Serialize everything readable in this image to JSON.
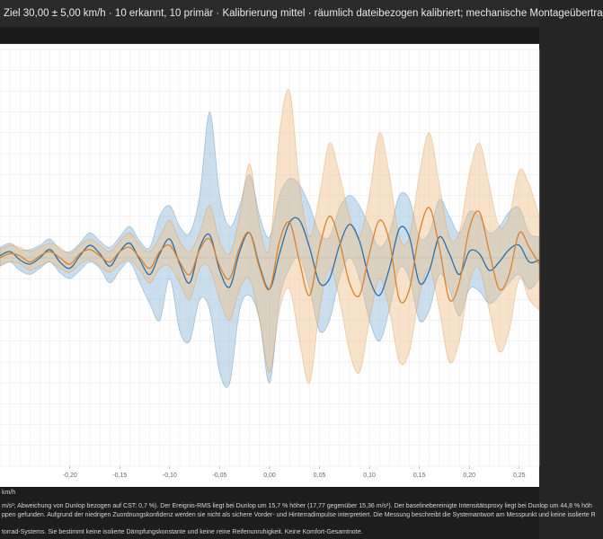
{
  "header": {
    "title": "Ziel 30,00 ± 5,00 km/h · 10 erkannt, 10 primär · Kalibrierung mittel · räumlich dateibezogen kalibriert; mechanische Montageübertra"
  },
  "footer": {
    "line1": "km/h",
    "line2": "m/s²; Abweichung von Dunlop bezogen auf CST: 0,7 %). Der Ereignis-RMS liegt bei Dunlop um 15,7 % höher (17,77 gegenüber 15,36 m/s²). Der baselinebereinigte Intensitätsproxy liegt bei Dunlop um 44,8 % höh",
    "line3": "ppen gefunden. Aufgrund der niedrigen Zuordnungskonfidenz werden sie nicht als sichere Vorder- und Hinterradimpulse interpretiert. Die Messung beschreibt die Systemantwort am Messpunkt und keine isolierte R",
    "line4": "torrad-Systems. Sie bestimmt keine isolierte Dämpfungskonstante und keine reine Reifenunruhigkeit. Keine Komfort-Gesamtnote."
  },
  "colors": {
    "background": "#ffffff",
    "grid": "#e8e8e8",
    "blue_line": "#2b6fa8",
    "blue_band": "#8bb6da",
    "orange_line": "#d9822b",
    "orange_band": "#f0c08a"
  },
  "chart_data": {
    "type": "line",
    "xlim": [
      -0.27,
      0.27
    ],
    "ylim": [
      -1.0,
      1.0
    ],
    "x_ticks": [
      {
        "value": -0.2,
        "label": "-0,20"
      },
      {
        "value": -0.15,
        "label": "-0,15"
      },
      {
        "value": -0.1,
        "label": "-0,10"
      },
      {
        "value": -0.05,
        "label": "-0,05"
      },
      {
        "value": 0.0,
        "label": "0,00"
      },
      {
        "value": 0.05,
        "label": "0,05"
      },
      {
        "value": 0.1,
        "label": "0,10"
      },
      {
        "value": 0.15,
        "label": "0,15"
      },
      {
        "value": 0.2,
        "label": "0,20"
      },
      {
        "value": 0.25,
        "label": "0,25"
      }
    ],
    "grid": true,
    "x": [
      -0.27,
      -0.26,
      -0.25,
      -0.24,
      -0.23,
      -0.22,
      -0.21,
      -0.2,
      -0.19,
      -0.18,
      -0.17,
      -0.16,
      -0.15,
      -0.14,
      -0.13,
      -0.12,
      -0.11,
      -0.1,
      -0.09,
      -0.08,
      -0.07,
      -0.06,
      -0.05,
      -0.04,
      -0.03,
      -0.02,
      -0.01,
      0.0,
      0.01,
      0.02,
      0.03,
      0.04,
      0.05,
      0.06,
      0.07,
      0.08,
      0.09,
      0.1,
      0.11,
      0.12,
      0.13,
      0.14,
      0.15,
      0.16,
      0.17,
      0.18,
      0.19,
      0.2,
      0.21,
      0.22,
      0.23,
      0.24,
      0.25,
      0.26,
      0.27
    ],
    "series": [
      {
        "color": "blue",
        "mean": [
          0.01,
          0.03,
          -0.01,
          -0.03,
          0.0,
          0.04,
          -0.02,
          -0.05,
          0.01,
          0.06,
          0.02,
          -0.04,
          0.03,
          0.07,
          -0.01,
          -0.08,
          0.02,
          0.09,
          -0.03,
          -0.12,
          0.05,
          0.11,
          -0.06,
          -0.14,
          0.03,
          0.12,
          -0.04,
          -0.15,
          0.02,
          0.17,
          0.18,
          0.05,
          -0.12,
          -0.1,
          0.06,
          0.16,
          0.08,
          -0.1,
          -0.18,
          -0.05,
          0.14,
          0.1,
          -0.12,
          -0.06,
          0.1,
          0.02,
          -0.08,
          0.03,
          0.02,
          -0.06,
          -0.02,
          0.04,
          0.06,
          -0.02,
          -0.01
        ],
        "upper": [
          0.05,
          0.07,
          0.04,
          0.04,
          0.06,
          0.09,
          0.04,
          0.03,
          0.07,
          0.12,
          0.08,
          0.05,
          0.1,
          0.15,
          0.08,
          0.05,
          0.2,
          0.25,
          0.15,
          0.12,
          0.3,
          0.7,
          0.3,
          0.15,
          0.25,
          0.4,
          0.2,
          0.1,
          0.3,
          0.38,
          0.35,
          0.25,
          0.12,
          0.1,
          0.24,
          0.3,
          0.25,
          0.15,
          0.05,
          0.12,
          0.3,
          0.28,
          0.1,
          0.12,
          0.28,
          0.2,
          0.12,
          0.22,
          0.2,
          0.12,
          0.15,
          0.22,
          0.24,
          0.12,
          0.1
        ],
        "lower": [
          -0.04,
          -0.02,
          -0.06,
          -0.08,
          -0.05,
          -0.02,
          -0.07,
          -0.1,
          -0.06,
          -0.02,
          -0.05,
          -0.12,
          -0.06,
          -0.02,
          -0.12,
          -0.22,
          -0.3,
          -0.1,
          -0.35,
          -0.4,
          -0.2,
          -0.25,
          -0.55,
          -0.6,
          -0.25,
          -0.18,
          -0.3,
          -0.6,
          -0.2,
          -0.05,
          0.0,
          -0.15,
          -0.35,
          -0.3,
          -0.1,
          0.0,
          -0.1,
          -0.3,
          -0.4,
          -0.25,
          -0.05,
          -0.1,
          -0.3,
          -0.25,
          -0.08,
          -0.15,
          -0.28,
          -0.15,
          -0.16,
          -0.22,
          -0.18,
          -0.12,
          -0.08,
          -0.15,
          -0.1
        ]
      },
      {
        "color": "orange",
        "mean": [
          0.0,
          0.02,
          0.01,
          -0.02,
          0.01,
          0.03,
          0.0,
          -0.03,
          0.02,
          0.04,
          0.01,
          -0.02,
          0.03,
          0.05,
          0.0,
          -0.05,
          0.03,
          0.06,
          -0.02,
          -0.08,
          0.04,
          0.09,
          -0.04,
          -0.1,
          0.05,
          0.12,
          -0.05,
          -0.15,
          0.08,
          0.17,
          -0.02,
          -0.18,
          0.05,
          0.2,
          0.08,
          -0.12,
          -0.18,
          0.02,
          0.18,
          0.08,
          -0.2,
          -0.15,
          0.12,
          0.24,
          0.05,
          -0.2,
          -0.12,
          0.14,
          0.22,
          0.03,
          -0.15,
          -0.08,
          0.12,
          0.05,
          -0.03
        ],
        "upper": [
          0.04,
          0.06,
          0.05,
          0.03,
          0.05,
          0.07,
          0.05,
          0.02,
          0.06,
          0.09,
          0.06,
          0.03,
          0.08,
          0.12,
          0.06,
          0.03,
          0.1,
          0.18,
          0.08,
          0.03,
          0.12,
          0.25,
          0.08,
          0.02,
          0.2,
          0.45,
          0.15,
          0.05,
          0.6,
          0.8,
          0.35,
          0.1,
          0.3,
          0.55,
          0.4,
          0.2,
          0.1,
          0.3,
          0.6,
          0.4,
          0.1,
          0.1,
          0.4,
          0.6,
          0.35,
          0.1,
          0.12,
          0.4,
          0.55,
          0.35,
          0.15,
          0.2,
          0.42,
          0.35,
          0.2
        ],
        "lower": [
          -0.04,
          -0.02,
          -0.03,
          -0.06,
          -0.04,
          -0.02,
          -0.05,
          -0.07,
          -0.03,
          -0.01,
          -0.04,
          -0.07,
          -0.03,
          -0.01,
          -0.06,
          -0.12,
          -0.05,
          -0.04,
          -0.12,
          -0.2,
          -0.05,
          -0.05,
          -0.2,
          -0.3,
          -0.15,
          -0.1,
          -0.3,
          -0.55,
          -0.25,
          -0.15,
          -0.4,
          -0.6,
          -0.25,
          -0.05,
          -0.2,
          -0.45,
          -0.55,
          -0.3,
          -0.1,
          -0.25,
          -0.5,
          -0.45,
          -0.18,
          -0.05,
          -0.25,
          -0.5,
          -0.4,
          -0.12,
          -0.05,
          -0.25,
          -0.45,
          -0.35,
          -0.1,
          -0.2,
          -0.25
        ]
      }
    ]
  }
}
